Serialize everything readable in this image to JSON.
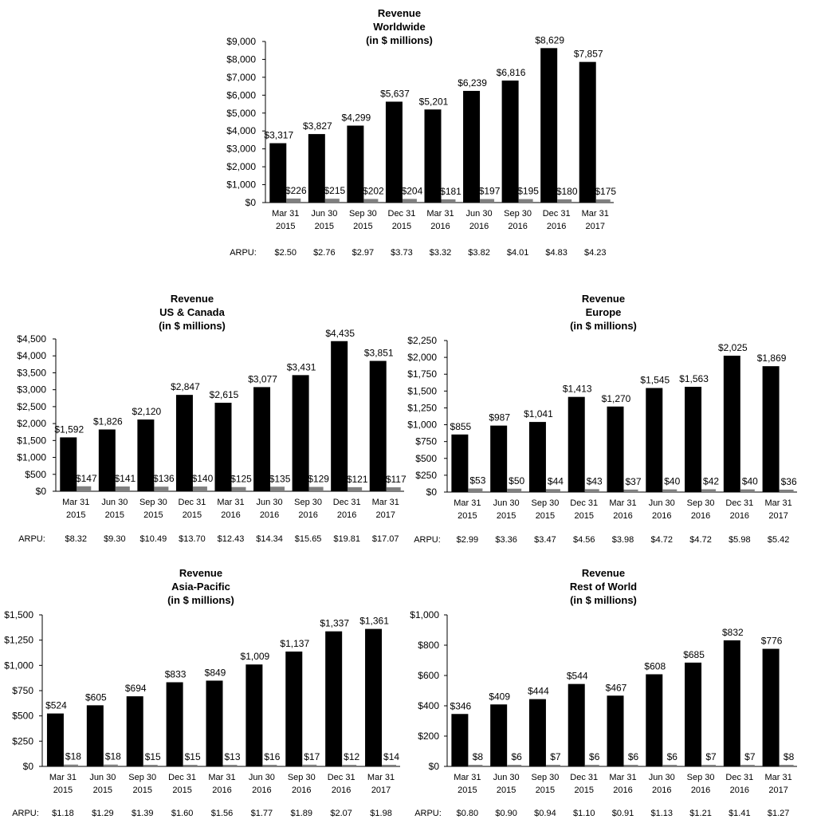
{
  "chart_data": [
    {
      "id": "worldwide",
      "type": "bar",
      "title": [
        "Revenue",
        "Worldwide",
        "(in $ millions)"
      ],
      "categories": [
        [
          "Mar 31",
          "2015"
        ],
        [
          "Jun 30",
          "2015"
        ],
        [
          "Sep 30",
          "2015"
        ],
        [
          "Dec 31",
          "2015"
        ],
        [
          "Mar 31",
          "2016"
        ],
        [
          "Jun 30",
          "2016"
        ],
        [
          "Sep 30",
          "2016"
        ],
        [
          "Dec 31",
          "2016"
        ],
        [
          "Mar 31",
          "2017"
        ]
      ],
      "series": [
        {
          "values": [
            3317,
            3827,
            4299,
            5637,
            5201,
            6239,
            6816,
            8629,
            7857
          ],
          "labels": [
            "$3,317",
            "$3,827",
            "$4,299",
            "$5,637",
            "$5,201",
            "$6,239",
            "$6,816",
            "$8,629",
            "$7,857"
          ],
          "color": "#000000"
        },
        {
          "values": [
            226,
            215,
            202,
            204,
            181,
            197,
            195,
            180,
            175
          ],
          "labels": [
            "$226",
            "$215",
            "$202",
            "$204",
            "$181",
            "$197",
            "$195",
            "$180",
            "$175"
          ],
          "color": "#7f7f7f"
        }
      ],
      "ylim": [
        0,
        9000
      ],
      "yticks": [
        "$0",
        "$1,000",
        "$2,000",
        "$3,000",
        "$4,000",
        "$5,000",
        "$6,000",
        "$7,000",
        "$8,000",
        "$9,000"
      ],
      "arpu_label": "ARPU:",
      "arpu": [
        "$2.50",
        "$2.76",
        "$2.97",
        "$3.73",
        "$3.32",
        "$3.82",
        "$4.01",
        "$4.83",
        "$4.23"
      ]
    },
    {
      "id": "us-canada",
      "type": "bar",
      "title": [
        "Revenue",
        "US & Canada",
        "(in $ millions)"
      ],
      "categories": [
        [
          "Mar 31",
          "2015"
        ],
        [
          "Jun 30",
          "2015"
        ],
        [
          "Sep 30",
          "2015"
        ],
        [
          "Dec 31",
          "2015"
        ],
        [
          "Mar 31",
          "2016"
        ],
        [
          "Jun 30",
          "2016"
        ],
        [
          "Sep 30",
          "2016"
        ],
        [
          "Dec 31",
          "2016"
        ],
        [
          "Mar 31",
          "2017"
        ]
      ],
      "series": [
        {
          "values": [
            1592,
            1826,
            2120,
            2847,
            2615,
            3077,
            3431,
            4435,
            3851
          ],
          "labels": [
            "$1,592",
            "$1,826",
            "$2,120",
            "$2,847",
            "$2,615",
            "$3,077",
            "$3,431",
            "$4,435",
            "$3,851"
          ],
          "color": "#000000"
        },
        {
          "values": [
            147,
            141,
            136,
            140,
            125,
            135,
            129,
            121,
            117
          ],
          "labels": [
            "$147",
            "$141",
            "$136",
            "$140",
            "$125",
            "$135",
            "$129",
            "$121",
            "$117"
          ],
          "color": "#7f7f7f"
        }
      ],
      "ylim": [
        0,
        4500
      ],
      "yticks": [
        "$0",
        "$500",
        "$1,000",
        "$1,500",
        "$2,000",
        "$2,500",
        "$3,000",
        "$3,500",
        "$4,000",
        "$4,500"
      ],
      "arpu_label": "ARPU:",
      "arpu": [
        "$8.32",
        "$9.30",
        "$10.49",
        "$13.70",
        "$12.43",
        "$14.34",
        "$15.65",
        "$19.81",
        "$17.07"
      ]
    },
    {
      "id": "europe",
      "type": "bar",
      "title": [
        "Revenue",
        "Europe",
        "(in $ millions)"
      ],
      "categories": [
        [
          "Mar 31",
          "2015"
        ],
        [
          "Jun 30",
          "2015"
        ],
        [
          "Sep 30",
          "2015"
        ],
        [
          "Dec 31",
          "2015"
        ],
        [
          "Mar 31",
          "2016"
        ],
        [
          "Jun 30",
          "2016"
        ],
        [
          "Sep 30",
          "2016"
        ],
        [
          "Dec 31",
          "2016"
        ],
        [
          "Mar 31",
          "2017"
        ]
      ],
      "series": [
        {
          "values": [
            855,
            987,
            1041,
            1413,
            1270,
            1545,
            1563,
            2025,
            1869
          ],
          "labels": [
            "$855",
            "$987",
            "$1,041",
            "$1,413",
            "$1,270",
            "$1,545",
            "$1,563",
            "$2,025",
            "$1,869"
          ],
          "color": "#000000"
        },
        {
          "values": [
            53,
            50,
            44,
            43,
            37,
            40,
            42,
            40,
            36
          ],
          "labels": [
            "$53",
            "$50",
            "$44",
            "$43",
            "$37",
            "$40",
            "$42",
            "$40",
            "$36"
          ],
          "color": "#7f7f7f"
        }
      ],
      "ylim": [
        0,
        2250
      ],
      "yticks": [
        "$0",
        "$250",
        "$500",
        "$750",
        "$1,000",
        "$1,250",
        "$1,500",
        "$1,750",
        "$2,000",
        "$2,250"
      ],
      "arpu_label": "ARPU:",
      "arpu": [
        "$2.99",
        "$3.36",
        "$3.47",
        "$4.56",
        "$3.98",
        "$4.72",
        "$4.72",
        "$5.98",
        "$5.42"
      ]
    },
    {
      "id": "asia-pacific",
      "type": "bar",
      "title": [
        "Revenue",
        "Asia-Pacific",
        "(in $ millions)"
      ],
      "categories": [
        [
          "Mar 31",
          "2015"
        ],
        [
          "Jun 30",
          "2015"
        ],
        [
          "Sep 30",
          "2015"
        ],
        [
          "Dec 31",
          "2015"
        ],
        [
          "Mar 31",
          "2016"
        ],
        [
          "Jun 30",
          "2016"
        ],
        [
          "Sep 30",
          "2016"
        ],
        [
          "Dec 31",
          "2016"
        ],
        [
          "Mar 31",
          "2017"
        ]
      ],
      "series": [
        {
          "values": [
            524,
            605,
            694,
            833,
            849,
            1009,
            1137,
            1337,
            1361
          ],
          "labels": [
            "$524",
            "$605",
            "$694",
            "$833",
            "$849",
            "$1,009",
            "$1,137",
            "$1,337",
            "$1,361"
          ],
          "color": "#000000"
        },
        {
          "values": [
            18,
            18,
            15,
            15,
            13,
            16,
            17,
            12,
            14
          ],
          "labels": [
            "$18",
            "$18",
            "$15",
            "$15",
            "$13",
            "$16",
            "$17",
            "$12",
            "$14"
          ],
          "color": "#7f7f7f"
        }
      ],
      "ylim": [
        0,
        1500
      ],
      "yticks": [
        "$0",
        "$250",
        "$500",
        "$750",
        "$1,000",
        "$1,250",
        "$1,500"
      ],
      "arpu_label": "ARPU:",
      "arpu": [
        "$1.18",
        "$1.29",
        "$1.39",
        "$1.60",
        "$1.56",
        "$1.77",
        "$1.89",
        "$2.07",
        "$1.98"
      ]
    },
    {
      "id": "rest-of-world",
      "type": "bar",
      "title": [
        "Revenue",
        "Rest of World",
        "(in $ millions)"
      ],
      "categories": [
        [
          "Mar 31",
          "2015"
        ],
        [
          "Jun 30",
          "2015"
        ],
        [
          "Sep 30",
          "2015"
        ],
        [
          "Dec 31",
          "2015"
        ],
        [
          "Mar 31",
          "2016"
        ],
        [
          "Jun 30",
          "2016"
        ],
        [
          "Sep 30",
          "2016"
        ],
        [
          "Dec 31",
          "2016"
        ],
        [
          "Mar 31",
          "2017"
        ]
      ],
      "series": [
        {
          "values": [
            346,
            409,
            444,
            544,
            467,
            608,
            685,
            832,
            776
          ],
          "labels": [
            "$346",
            "$409",
            "$444",
            "$544",
            "$467",
            "$608",
            "$685",
            "$832",
            "$776"
          ],
          "color": "#000000"
        },
        {
          "values": [
            8,
            6,
            7,
            6,
            6,
            6,
            7,
            7,
            8
          ],
          "labels": [
            "$8",
            "$6",
            "$7",
            "$6",
            "$6",
            "$6",
            "$7",
            "$7",
            "$8"
          ],
          "color": "#7f7f7f"
        }
      ],
      "ylim": [
        0,
        1000
      ],
      "yticks": [
        "$0",
        "$200",
        "$400",
        "$600",
        "$800",
        "$1,000"
      ],
      "arpu_label": "ARPU:",
      "arpu": [
        "$0.80",
        "$0.90",
        "$0.94",
        "$1.10",
        "$0.91",
        "$1.13",
        "$1.21",
        "$1.41",
        "$1.27"
      ]
    }
  ]
}
